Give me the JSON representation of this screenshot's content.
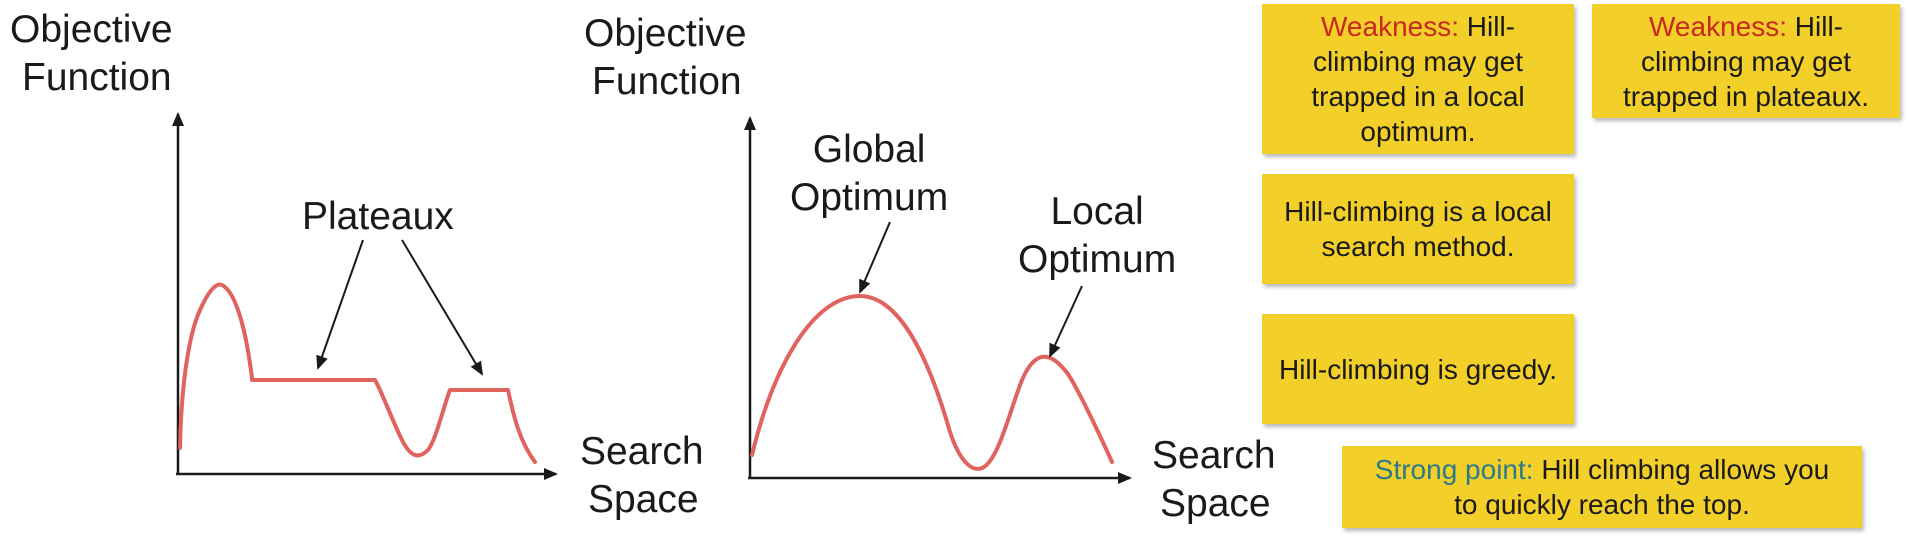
{
  "diagram1": {
    "y_axis_label_line1": "Objective",
    "y_axis_label_line2": "Function",
    "x_axis_label_line1": "Search",
    "x_axis_label_line2": "Space",
    "annotation": "Plateaux"
  },
  "diagram2": {
    "y_axis_label_line1": "Objective",
    "y_axis_label_line2": "Function",
    "x_axis_label_line1": "Search",
    "x_axis_label_line2": "Space",
    "global_line1": "Global",
    "global_line2": "Optimum",
    "local_line1": "Local",
    "local_line2": "Optimum"
  },
  "colors": {
    "curve": "#e0635e",
    "note_background": "#f3cf2a",
    "weakness_lead": "#c8281e",
    "strong_lead": "#2a7a8a"
  },
  "notes": {
    "weak_local": {
      "lead": "Weakness:",
      "text": " Hill-climbing may get trapped in a local optimum."
    },
    "weak_plateaux": {
      "lead": "Weakness:",
      "text": " Hill-climbing may get trapped in plateaux."
    },
    "local_search": {
      "text": "Hill-climbing is a local search method."
    },
    "greedy": {
      "text": "Hill-climbing is greedy."
    },
    "strong": {
      "lead": "Strong point:",
      "text": " Hill climbing allows you to quickly reach the top."
    }
  }
}
